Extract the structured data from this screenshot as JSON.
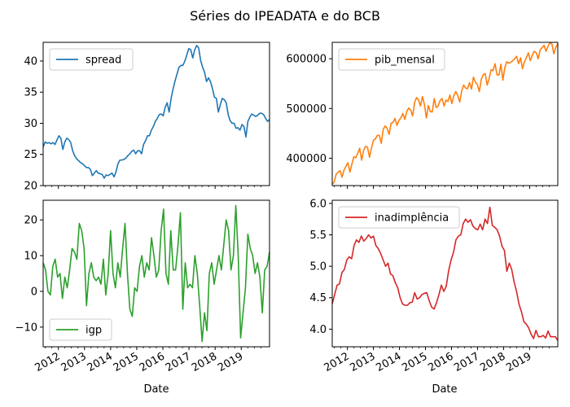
{
  "figure": {
    "title": "Séries do IPEADATA e do BCB",
    "xlabel": "Date"
  },
  "chart_data": [
    {
      "type": "line",
      "series": [
        {
          "name": "spread",
          "color": "#1f77b4"
        }
      ],
      "legend": "top-left",
      "x_range": [
        "2011-06",
        "2020-02"
      ],
      "x_ticks": [
        "2012",
        "2013",
        "2014",
        "2015",
        "2016",
        "2017",
        "2018",
        "2019"
      ],
      "ylim": [
        20,
        43
      ],
      "y_ticks": [
        "20",
        "25",
        "30",
        "35",
        "40"
      ],
      "y_tick_values": [
        20,
        25,
        30,
        35,
        40
      ],
      "show_x_tick_labels": false,
      "values": [
        26.2,
        27.0,
        26.8,
        26.9,
        26.7,
        26.9,
        26.6,
        27.3,
        28.0,
        27.6,
        25.8,
        27.0,
        27.6,
        27.4,
        26.9,
        25.6,
        24.8,
        24.3,
        24.0,
        23.7,
        23.5,
        23.2,
        22.9,
        22.9,
        22.6,
        21.6,
        22.0,
        22.4,
        22.0,
        21.9,
        21.8,
        21.2,
        21.7,
        21.6,
        21.8,
        22.0,
        21.4,
        22.2,
        23.5,
        24.1,
        24.1,
        24.2,
        24.4,
        24.8,
        25.1,
        25.5,
        25.7,
        25.1,
        25.6,
        25.6,
        25.1,
        26.6,
        27.2,
        28.0,
        28.0,
        28.9,
        29.5,
        30.3,
        30.8,
        31.4,
        31.5,
        31.2,
        32.6,
        33.3,
        31.8,
        34.0,
        35.5,
        36.8,
        37.9,
        39.0,
        39.3,
        39.3,
        40.0,
        41.0,
        42.0,
        41.8,
        40.5,
        41.8,
        42.5,
        42.1,
        40.1,
        39.0,
        38.2,
        36.7,
        37.3,
        36.7,
        35.6,
        34.2,
        34.0,
        31.8,
        33.0,
        34.0,
        33.8,
        33.3,
        31.4,
        30.4,
        30.0,
        30.0,
        29.2,
        29.3,
        28.9,
        29.8,
        29.5,
        27.8,
        30.3,
        31.0,
        31.5,
        31.3,
        31.1,
        31.3,
        31.6,
        31.6,
        31.4,
        30.8,
        30.3,
        30.6
      ]
    },
    {
      "type": "line",
      "series": [
        {
          "name": "pib_mensal",
          "color": "#ff7f0e"
        }
      ],
      "legend": "top-left",
      "x_range": [
        "2011-06",
        "2020-02"
      ],
      "x_ticks": [
        "2012",
        "2013",
        "2014",
        "2015",
        "2016",
        "2017",
        "2018",
        "2019"
      ],
      "ylim": [
        345000,
        633000
      ],
      "y_ticks": [
        "400000",
        "500000",
        "600000"
      ],
      "y_tick_values": [
        400000,
        500000,
        600000
      ],
      "show_x_tick_labels": false,
      "values": [
        348000,
        352000,
        368000,
        372000,
        375000,
        362000,
        376000,
        384000,
        391000,
        372000,
        388000,
        403000,
        401000,
        410000,
        420000,
        396000,
        416000,
        424000,
        422000,
        402000,
        420000,
        436000,
        439000,
        446000,
        446000,
        430000,
        458000,
        465000,
        460000,
        448000,
        470000,
        472000,
        480000,
        466000,
        476000,
        481000,
        490000,
        478000,
        494000,
        501000,
        497000,
        485000,
        512000,
        522000,
        517000,
        505000,
        524000,
        508000,
        481000,
        506000,
        494000,
        493000,
        520000,
        502000,
        505000,
        516000,
        520000,
        505000,
        517000,
        514000,
        527000,
        510000,
        526000,
        534000,
        526000,
        513000,
        535000,
        547000,
        541000,
        540000,
        552000,
        539000,
        563000,
        553000,
        548000,
        534000,
        559000,
        568000,
        570000,
        547000,
        560000,
        578000,
        576000,
        590000,
        568000,
        567000,
        589000,
        557000,
        582000,
        594000,
        591000,
        593000,
        596000,
        600000,
        605000,
        590000,
        602000,
        580000,
        594000,
        602000,
        612000,
        596000,
        607000,
        615000,
        612000,
        600000,
        618000,
        622000,
        627000,
        615000,
        625000,
        632000,
        630000,
        610000,
        623000,
        630000
      ]
    },
    {
      "type": "line",
      "series": [
        {
          "name": "igp",
          "color": "#2ca02c"
        }
      ],
      "legend": "bottom-left",
      "x_range": [
        "2011-06",
        "2020-02"
      ],
      "x_ticks": [
        "2012",
        "2013",
        "2014",
        "2015",
        "2016",
        "2017",
        "2018",
        "2019"
      ],
      "ylim": [
        -15.5,
        25.5
      ],
      "y_ticks": [
        "−10",
        "0",
        "10",
        "20"
      ],
      "y_tick_values": [
        -10,
        0,
        10,
        20
      ],
      "show_x_tick_labels": true,
      "values": [
        8,
        6,
        0,
        -1,
        7,
        9,
        4,
        5,
        -2,
        4,
        1,
        6,
        12,
        11,
        9,
        19,
        17,
        12,
        -4,
        5,
        8,
        4,
        3,
        4,
        2,
        9,
        -1,
        5,
        17,
        5,
        1,
        8,
        4,
        12,
        19,
        5,
        -5,
        -7,
        1,
        0,
        7,
        10,
        4,
        8,
        6,
        15,
        10,
        4,
        6,
        17,
        23,
        5,
        2,
        17,
        6,
        6,
        13,
        22,
        -5,
        8,
        1,
        2,
        1,
        10,
        5,
        -4,
        -14,
        -6,
        -11,
        5,
        8,
        2,
        6,
        10,
        6,
        13,
        20,
        17,
        6,
        10,
        24,
        10,
        -13,
        -6,
        1,
        16,
        12,
        10,
        5,
        8,
        4,
        -6,
        6,
        7,
        11
      ]
    },
    {
      "type": "line",
      "series": [
        {
          "name": "inadimplência",
          "color": "#d62728"
        }
      ],
      "legend": "top-left",
      "x_range": [
        "2011-06",
        "2020-02"
      ],
      "x_ticks": [
        "2012",
        "2013",
        "2014",
        "2015",
        "2016",
        "2017",
        "2018",
        "2019"
      ],
      "ylim": [
        3.72,
        6.05
      ],
      "y_ticks": [
        "4.0",
        "4.5",
        "5.0",
        "5.5",
        "6.0"
      ],
      "y_tick_values": [
        4.0,
        4.5,
        5.0,
        5.5,
        6.0
      ],
      "show_x_tick_labels": true,
      "values": [
        4.4,
        4.55,
        4.7,
        4.72,
        4.9,
        4.95,
        5.1,
        5.15,
        5.12,
        5.33,
        5.42,
        5.38,
        5.48,
        5.4,
        5.44,
        5.5,
        5.45,
        5.48,
        5.33,
        5.28,
        5.2,
        5.1,
        5.0,
        5.05,
        4.88,
        4.85,
        4.74,
        4.66,
        4.5,
        4.4,
        4.38,
        4.38,
        4.42,
        4.43,
        4.58,
        4.48,
        4.5,
        4.55,
        4.57,
        4.58,
        4.45,
        4.35,
        4.32,
        4.42,
        4.55,
        4.7,
        4.6,
        4.68,
        4.93,
        5.1,
        5.22,
        5.42,
        5.48,
        5.5,
        5.68,
        5.75,
        5.7,
        5.74,
        5.64,
        5.6,
        5.58,
        5.67,
        5.58,
        5.75,
        5.68,
        5.94,
        5.65,
        5.62,
        5.58,
        5.48,
        5.32,
        5.25,
        4.92,
        5.05,
        4.95,
        4.75,
        4.6,
        4.4,
        4.28,
        4.12,
        4.08,
        4.02,
        3.92,
        3.85,
        3.98,
        3.88,
        3.88,
        3.9,
        3.86,
        3.97,
        3.88,
        3.88,
        3.88,
        3.82
      ]
    }
  ]
}
